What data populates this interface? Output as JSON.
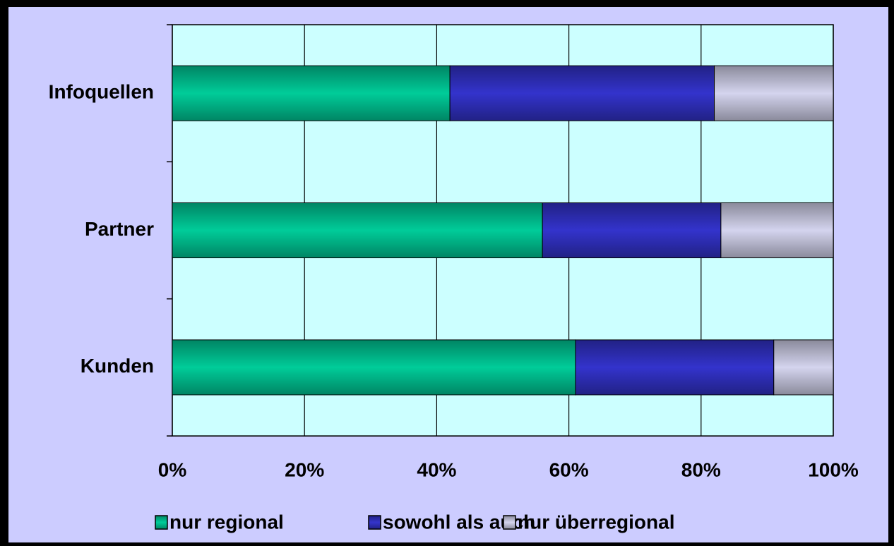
{
  "chart_data": {
    "type": "stacked-bar-horizontal",
    "categories": [
      "Infoquellen",
      "Partner",
      "Kunden"
    ],
    "series": [
      {
        "name": "nur regional",
        "color": "#00cc99",
        "values": [
          42,
          56,
          61
        ]
      },
      {
        "name": "sowohl als auch",
        "color": "#3333cc",
        "values": [
          40,
          27,
          30
        ]
      },
      {
        "name": "nur überregional",
        "color": "#d4d4ee",
        "values": [
          18,
          17,
          9
        ]
      }
    ],
    "xlim": [
      0,
      100
    ],
    "xticks": [
      {
        "value": 0,
        "label": "0%"
      },
      {
        "value": 20,
        "label": "20%"
      },
      {
        "value": 40,
        "label": "40%"
      },
      {
        "value": 60,
        "label": "60%"
      },
      {
        "value": 80,
        "label": "80%"
      },
      {
        "value": 100,
        "label": "100%"
      }
    ],
    "grid": true,
    "legend": "bottom"
  }
}
